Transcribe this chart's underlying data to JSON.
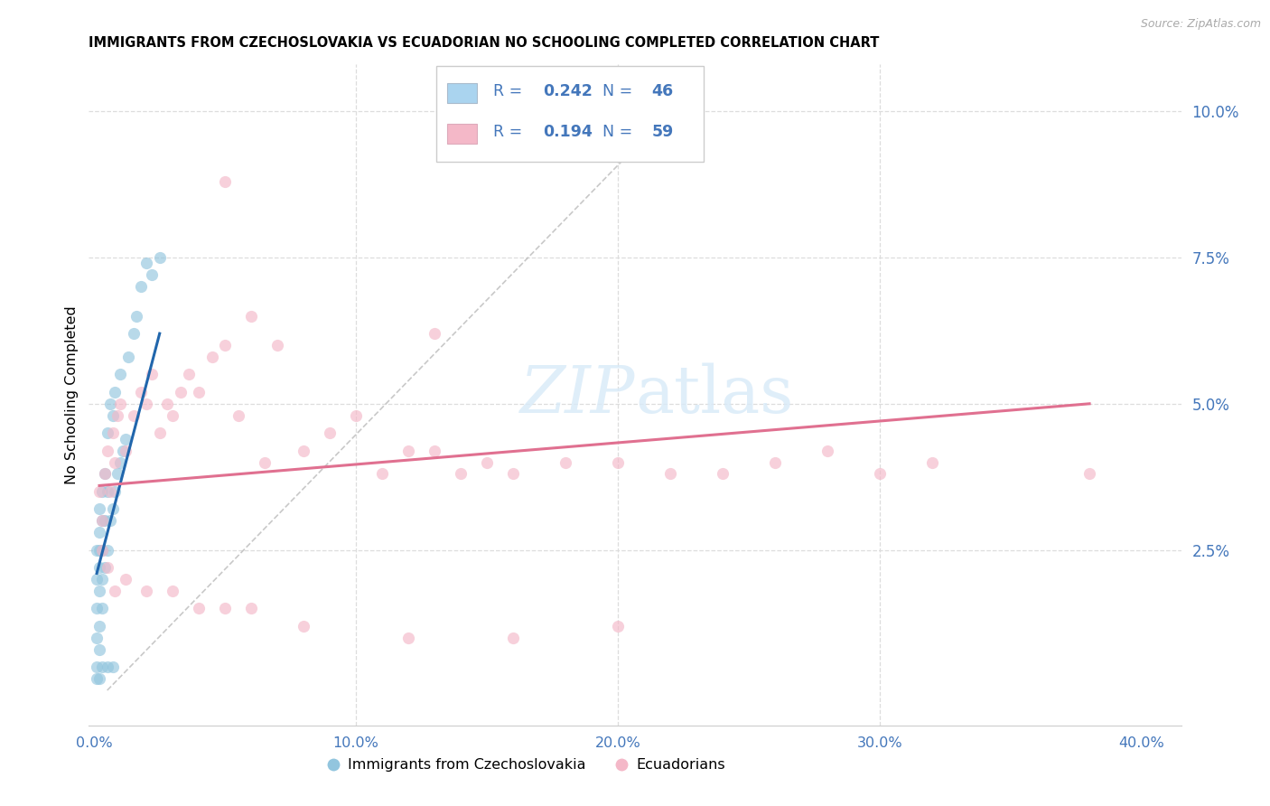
{
  "title": "IMMIGRANTS FROM CZECHOSLOVAKIA VS ECUADORIAN NO SCHOOLING COMPLETED CORRELATION CHART",
  "source": "Source: ZipAtlas.com",
  "ylabel": "No Schooling Completed",
  "x_ticks": [
    0.0,
    0.1,
    0.2,
    0.3,
    0.4
  ],
  "y_ticks_right": [
    0.025,
    0.05,
    0.075,
    0.1
  ],
  "xlim": [
    -0.002,
    0.415
  ],
  "ylim": [
    -0.005,
    0.108
  ],
  "legend_r1": "0.242",
  "legend_n1": "46",
  "legend_r2": "0.194",
  "legend_n2": "59",
  "blue_scatter_color": "#92c5de",
  "pink_scatter_color": "#f4b8c8",
  "blue_line_color": "#2166ac",
  "pink_line_color": "#e07090",
  "blue_legend_color": "#aad4ef",
  "pink_legend_color": "#f4b8c8",
  "text_blue_color": "#4477bb",
  "watermark_color": "#d8eaf8",
  "blue_label": "Immigrants from Czechoslovakia",
  "pink_label": "Ecuadorians",
  "blue_points_x": [
    0.001,
    0.001,
    0.001,
    0.001,
    0.001,
    0.002,
    0.002,
    0.002,
    0.002,
    0.002,
    0.002,
    0.002,
    0.003,
    0.003,
    0.003,
    0.003,
    0.003,
    0.004,
    0.004,
    0.004,
    0.005,
    0.005,
    0.005,
    0.006,
    0.006,
    0.007,
    0.007,
    0.008,
    0.008,
    0.009,
    0.01,
    0.01,
    0.011,
    0.012,
    0.013,
    0.015,
    0.016,
    0.018,
    0.02,
    0.022,
    0.025,
    0.001,
    0.002,
    0.003,
    0.005,
    0.007
  ],
  "blue_points_y": [
    0.005,
    0.01,
    0.015,
    0.02,
    0.025,
    0.008,
    0.012,
    0.018,
    0.022,
    0.025,
    0.028,
    0.032,
    0.015,
    0.02,
    0.025,
    0.03,
    0.035,
    0.022,
    0.03,
    0.038,
    0.025,
    0.035,
    0.045,
    0.03,
    0.05,
    0.032,
    0.048,
    0.035,
    0.052,
    0.038,
    0.04,
    0.055,
    0.042,
    0.044,
    0.058,
    0.062,
    0.065,
    0.07,
    0.074,
    0.072,
    0.075,
    0.003,
    0.003,
    0.005,
    0.005,
    0.005
  ],
  "pink_points_x": [
    0.002,
    0.003,
    0.004,
    0.005,
    0.006,
    0.007,
    0.008,
    0.009,
    0.01,
    0.012,
    0.015,
    0.018,
    0.02,
    0.022,
    0.025,
    0.028,
    0.03,
    0.033,
    0.036,
    0.04,
    0.045,
    0.05,
    0.055,
    0.06,
    0.065,
    0.07,
    0.08,
    0.09,
    0.1,
    0.11,
    0.12,
    0.13,
    0.14,
    0.15,
    0.16,
    0.18,
    0.2,
    0.22,
    0.24,
    0.26,
    0.28,
    0.3,
    0.32,
    0.38,
    0.003,
    0.005,
    0.008,
    0.012,
    0.02,
    0.03,
    0.04,
    0.06,
    0.08,
    0.12,
    0.16,
    0.2,
    0.05,
    0.05,
    0.13
  ],
  "pink_points_y": [
    0.035,
    0.03,
    0.038,
    0.042,
    0.035,
    0.045,
    0.04,
    0.048,
    0.05,
    0.042,
    0.048,
    0.052,
    0.05,
    0.055,
    0.045,
    0.05,
    0.048,
    0.052,
    0.055,
    0.052,
    0.058,
    0.06,
    0.048,
    0.065,
    0.04,
    0.06,
    0.042,
    0.045,
    0.048,
    0.038,
    0.042,
    0.042,
    0.038,
    0.04,
    0.038,
    0.04,
    0.04,
    0.038,
    0.038,
    0.04,
    0.042,
    0.038,
    0.04,
    0.038,
    0.025,
    0.022,
    0.018,
    0.02,
    0.018,
    0.018,
    0.015,
    0.015,
    0.012,
    0.01,
    0.01,
    0.012,
    0.088,
    0.015,
    0.062
  ],
  "blue_line_x": [
    0.001,
    0.025
  ],
  "blue_line_y": [
    0.021,
    0.062
  ],
  "pink_line_x": [
    0.002,
    0.38
  ],
  "pink_line_y": [
    0.036,
    0.05
  ],
  "diag_line_x": [
    0.005,
    0.22
  ],
  "diag_line_y": [
    0.001,
    0.1
  ]
}
